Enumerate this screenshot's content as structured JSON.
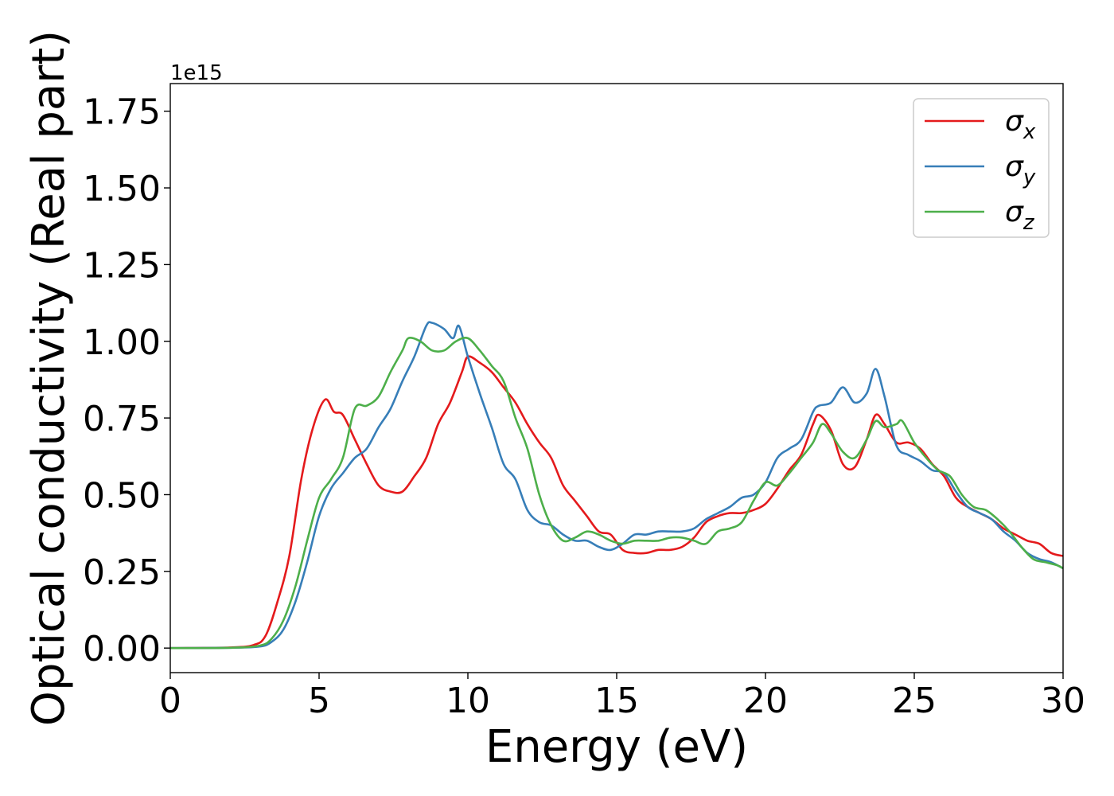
{
  "chart_data": {
    "type": "line",
    "title": "",
    "xlabel": "Energy (eV)",
    "ylabel": "Optical conductivity (Real part)",
    "y_offset_label": "1e15",
    "xlim": [
      0,
      30
    ],
    "ylim": [
      -0.08,
      1.84
    ],
    "x_ticks": [
      0,
      5,
      10,
      15,
      20,
      25,
      30
    ],
    "y_ticks": [
      0.0,
      0.25,
      0.5,
      0.75,
      1.0,
      1.25,
      1.5,
      1.75
    ],
    "x_tick_labels": [
      "0",
      "5",
      "10",
      "15",
      "20",
      "25",
      "30"
    ],
    "y_tick_labels": [
      "0.00",
      "0.25",
      "0.50",
      "0.75",
      "1.00",
      "1.25",
      "1.50",
      "1.75"
    ],
    "grid": false,
    "legend_position": "top-right",
    "series": [
      {
        "name": "σx",
        "legend_base": "σ",
        "legend_sub": "x",
        "color": "#e41a1c",
        "points": [
          [
            0,
            0
          ],
          [
            2,
            0.002
          ],
          [
            2.8,
            0.01
          ],
          [
            3.2,
            0.04
          ],
          [
            3.6,
            0.15
          ],
          [
            4,
            0.3
          ],
          [
            4.4,
            0.55
          ],
          [
            4.8,
            0.72
          ],
          [
            5.2,
            0.81
          ],
          [
            5.5,
            0.77
          ],
          [
            5.8,
            0.76
          ],
          [
            6.2,
            0.68
          ],
          [
            6.6,
            0.6
          ],
          [
            7,
            0.53
          ],
          [
            7.4,
            0.51
          ],
          [
            7.8,
            0.51
          ],
          [
            8.2,
            0.56
          ],
          [
            8.6,
            0.62
          ],
          [
            9,
            0.73
          ],
          [
            9.4,
            0.8
          ],
          [
            9.8,
            0.9
          ],
          [
            10,
            0.95
          ],
          [
            10.4,
            0.93
          ],
          [
            10.8,
            0.9
          ],
          [
            11.2,
            0.85
          ],
          [
            11.6,
            0.8
          ],
          [
            12,
            0.73
          ],
          [
            12.4,
            0.67
          ],
          [
            12.8,
            0.62
          ],
          [
            13.2,
            0.53
          ],
          [
            13.6,
            0.48
          ],
          [
            14,
            0.43
          ],
          [
            14.4,
            0.38
          ],
          [
            14.8,
            0.37
          ],
          [
            15.2,
            0.32
          ],
          [
            15.6,
            0.31
          ],
          [
            16,
            0.31
          ],
          [
            16.4,
            0.32
          ],
          [
            16.8,
            0.32
          ],
          [
            17.2,
            0.33
          ],
          [
            17.6,
            0.36
          ],
          [
            18,
            0.41
          ],
          [
            18.4,
            0.43
          ],
          [
            18.8,
            0.44
          ],
          [
            19.2,
            0.44
          ],
          [
            19.6,
            0.45
          ],
          [
            20,
            0.47
          ],
          [
            20.4,
            0.52
          ],
          [
            20.8,
            0.58
          ],
          [
            21.2,
            0.63
          ],
          [
            21.6,
            0.73
          ],
          [
            21.8,
            0.76
          ],
          [
            22.2,
            0.71
          ],
          [
            22.6,
            0.6
          ],
          [
            23,
            0.59
          ],
          [
            23.4,
            0.68
          ],
          [
            23.7,
            0.76
          ],
          [
            24,
            0.73
          ],
          [
            24.4,
            0.67
          ],
          [
            24.8,
            0.67
          ],
          [
            25.2,
            0.65
          ],
          [
            25.6,
            0.6
          ],
          [
            26,
            0.56
          ],
          [
            26.4,
            0.49
          ],
          [
            26.8,
            0.46
          ],
          [
            27.2,
            0.44
          ],
          [
            27.6,
            0.42
          ],
          [
            28,
            0.39
          ],
          [
            28.4,
            0.37
          ],
          [
            28.8,
            0.35
          ],
          [
            29.2,
            0.34
          ],
          [
            29.6,
            0.31
          ],
          [
            30,
            0.3
          ]
        ]
      },
      {
        "name": "σy",
        "legend_base": "σ",
        "legend_sub": "y",
        "color": "#377eb8",
        "points": [
          [
            0,
            0
          ],
          [
            2,
            0.001
          ],
          [
            3,
            0.005
          ],
          [
            3.4,
            0.02
          ],
          [
            3.8,
            0.06
          ],
          [
            4.2,
            0.15
          ],
          [
            4.6,
            0.28
          ],
          [
            5,
            0.43
          ],
          [
            5.4,
            0.52
          ],
          [
            5.8,
            0.57
          ],
          [
            6.2,
            0.62
          ],
          [
            6.6,
            0.65
          ],
          [
            7,
            0.72
          ],
          [
            7.4,
            0.78
          ],
          [
            7.8,
            0.87
          ],
          [
            8.2,
            0.95
          ],
          [
            8.6,
            1.05
          ],
          [
            8.8,
            1.06
          ],
          [
            9.2,
            1.04
          ],
          [
            9.5,
            1.01
          ],
          [
            9.7,
            1.05
          ],
          [
            10,
            0.95
          ],
          [
            10.4,
            0.83
          ],
          [
            10.8,
            0.72
          ],
          [
            11.2,
            0.6
          ],
          [
            11.6,
            0.55
          ],
          [
            12,
            0.45
          ],
          [
            12.4,
            0.41
          ],
          [
            12.8,
            0.4
          ],
          [
            13.2,
            0.37
          ],
          [
            13.6,
            0.35
          ],
          [
            14,
            0.35
          ],
          [
            14.4,
            0.33
          ],
          [
            14.8,
            0.32
          ],
          [
            15.2,
            0.34
          ],
          [
            15.6,
            0.37
          ],
          [
            16,
            0.37
          ],
          [
            16.4,
            0.38
          ],
          [
            16.8,
            0.38
          ],
          [
            17.2,
            0.38
          ],
          [
            17.6,
            0.39
          ],
          [
            18,
            0.42
          ],
          [
            18.4,
            0.44
          ],
          [
            18.8,
            0.46
          ],
          [
            19.2,
            0.49
          ],
          [
            19.6,
            0.5
          ],
          [
            20,
            0.54
          ],
          [
            20.4,
            0.62
          ],
          [
            20.8,
            0.65
          ],
          [
            21.2,
            0.68
          ],
          [
            21.6,
            0.77
          ],
          [
            21.8,
            0.79
          ],
          [
            22.2,
            0.8
          ],
          [
            22.6,
            0.85
          ],
          [
            23,
            0.8
          ],
          [
            23.4,
            0.83
          ],
          [
            23.7,
            0.91
          ],
          [
            24,
            0.82
          ],
          [
            24.4,
            0.66
          ],
          [
            24.8,
            0.63
          ],
          [
            25.2,
            0.61
          ],
          [
            25.6,
            0.58
          ],
          [
            26,
            0.57
          ],
          [
            26.4,
            0.51
          ],
          [
            26.8,
            0.46
          ],
          [
            27.2,
            0.44
          ],
          [
            27.6,
            0.42
          ],
          [
            28,
            0.38
          ],
          [
            28.4,
            0.35
          ],
          [
            28.8,
            0.31
          ],
          [
            29.2,
            0.29
          ],
          [
            29.6,
            0.28
          ],
          [
            30,
            0.26
          ]
        ]
      },
      {
        "name": "σz",
        "legend_base": "σ",
        "legend_sub": "z",
        "color": "#4daf4a",
        "points": [
          [
            0,
            0
          ],
          [
            2,
            0.001
          ],
          [
            3,
            0.008
          ],
          [
            3.4,
            0.03
          ],
          [
            3.8,
            0.09
          ],
          [
            4.2,
            0.2
          ],
          [
            4.6,
            0.35
          ],
          [
            5,
            0.49
          ],
          [
            5.4,
            0.55
          ],
          [
            5.8,
            0.62
          ],
          [
            6.2,
            0.78
          ],
          [
            6.6,
            0.79
          ],
          [
            7,
            0.82
          ],
          [
            7.4,
            0.9
          ],
          [
            7.8,
            0.97
          ],
          [
            8,
            1.01
          ],
          [
            8.4,
            1.0
          ],
          [
            8.8,
            0.97
          ],
          [
            9.2,
            0.97
          ],
          [
            9.6,
            1.0
          ],
          [
            10,
            1.01
          ],
          [
            10.4,
            0.97
          ],
          [
            10.8,
            0.92
          ],
          [
            11.2,
            0.87
          ],
          [
            11.6,
            0.75
          ],
          [
            12,
            0.65
          ],
          [
            12.4,
            0.5
          ],
          [
            12.8,
            0.4
          ],
          [
            13.2,
            0.35
          ],
          [
            13.6,
            0.36
          ],
          [
            14,
            0.38
          ],
          [
            14.4,
            0.37
          ],
          [
            14.8,
            0.35
          ],
          [
            15.2,
            0.34
          ],
          [
            15.6,
            0.35
          ],
          [
            16,
            0.35
          ],
          [
            16.4,
            0.35
          ],
          [
            16.8,
            0.36
          ],
          [
            17.2,
            0.36
          ],
          [
            17.6,
            0.35
          ],
          [
            18,
            0.34
          ],
          [
            18.4,
            0.38
          ],
          [
            18.8,
            0.39
          ],
          [
            19.2,
            0.41
          ],
          [
            19.6,
            0.48
          ],
          [
            20,
            0.54
          ],
          [
            20.4,
            0.53
          ],
          [
            20.8,
            0.57
          ],
          [
            21.2,
            0.62
          ],
          [
            21.6,
            0.67
          ],
          [
            21.9,
            0.73
          ],
          [
            22.2,
            0.7
          ],
          [
            22.6,
            0.64
          ],
          [
            23,
            0.62
          ],
          [
            23.4,
            0.68
          ],
          [
            23.7,
            0.74
          ],
          [
            24,
            0.72
          ],
          [
            24.4,
            0.73
          ],
          [
            24.6,
            0.74
          ],
          [
            25,
            0.67
          ],
          [
            25.4,
            0.62
          ],
          [
            25.8,
            0.58
          ],
          [
            26.2,
            0.56
          ],
          [
            26.6,
            0.5
          ],
          [
            27,
            0.46
          ],
          [
            27.4,
            0.45
          ],
          [
            27.8,
            0.42
          ],
          [
            28.2,
            0.38
          ],
          [
            28.6,
            0.33
          ],
          [
            29,
            0.29
          ],
          [
            29.4,
            0.28
          ],
          [
            29.8,
            0.27
          ],
          [
            30,
            0.26
          ]
        ]
      }
    ]
  }
}
